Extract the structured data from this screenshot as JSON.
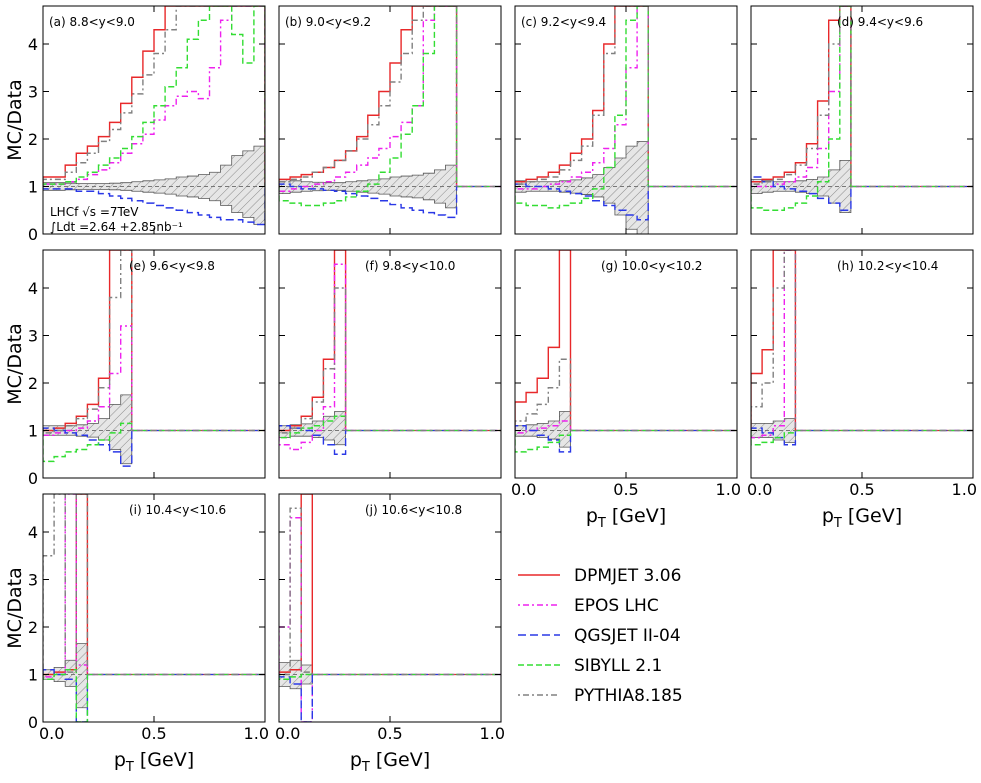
{
  "chart_data": {
    "type": "line",
    "ylabel": "MC/Data",
    "xlabel_main": "p",
    "xlabel_sub": "T",
    "xlabel_unit": " [GeV]",
    "xlim": [
      0.0,
      1.0
    ],
    "ylim": [
      0,
      4.8
    ],
    "xticks": [
      "0.0",
      "0.5",
      "1.0"
    ],
    "yticks": [
      "0",
      "1",
      "2",
      "3",
      "4"
    ],
    "annotation": {
      "line1": "LHCf √s =7TeV",
      "line2": "∫Ldt =2.64 +2.85nb⁻¹"
    },
    "legend": [
      {
        "name": "DPMJET 3.06",
        "color": "#e8282a",
        "dash": ""
      },
      {
        "name": "EPOS LHC",
        "color": "#ee22ee",
        "dash": "2,3,6,3"
      },
      {
        "name": "QGSJET II-04",
        "color": "#2a38e6",
        "dash": "8,4"
      },
      {
        "name": "SIBYLL 2.1",
        "color": "#33dd33",
        "dash": "6,3"
      },
      {
        "name": "PYTHIA8.185",
        "color": "#808080",
        "dash": "2,3,6,3"
      }
    ],
    "panels": [
      {
        "label": "(a) 8.8<y<9.0",
        "edges": [
          0.0,
          0.1,
          0.15,
          0.2,
          0.25,
          0.3,
          0.35,
          0.4,
          0.45,
          0.5,
          0.55,
          0.6,
          0.65,
          0.7,
          0.75,
          0.8,
          0.85,
          0.9,
          0.95,
          1.0
        ],
        "series": {
          "DPMJET 3.06": [
            1.2,
            1.45,
            1.7,
            1.85,
            2.05,
            2.35,
            2.75,
            3.3,
            3.85,
            4.3,
            4.8,
            5.2,
            6,
            6,
            6,
            6,
            6,
            6,
            6
          ],
          "EPOS LHC": [
            1.05,
            1.1,
            1.15,
            1.25,
            1.35,
            1.5,
            1.7,
            1.9,
            2.1,
            2.4,
            2.7,
            2.9,
            3.0,
            2.85,
            3.5,
            4.5,
            5,
            5,
            5
          ],
          "QGSJET II-04": [
            0.95,
            0.95,
            0.9,
            0.9,
            0.85,
            0.8,
            0.75,
            0.7,
            0.65,
            0.6,
            0.55,
            0.5,
            0.45,
            0.4,
            0.35,
            0.3,
            0.3,
            0.25,
            0.2
          ],
          "SIBYLL 2.1": [
            1.05,
            1.1,
            1.2,
            1.3,
            1.45,
            1.6,
            1.8,
            2.05,
            2.35,
            2.7,
            3.1,
            3.5,
            4.1,
            4.5,
            4.9,
            5.3,
            4.2,
            3.6,
            6
          ],
          "PYTHIA8.185": [
            1.15,
            1.3,
            1.5,
            1.7,
            1.95,
            2.2,
            2.55,
            2.95,
            3.35,
            3.8,
            4.3,
            4.8,
            6,
            6,
            6,
            6,
            6,
            6,
            6
          ]
        },
        "band_lo": [
          0.92,
          0.93,
          0.94,
          0.94,
          0.94,
          0.93,
          0.92,
          0.9,
          0.88,
          0.86,
          0.84,
          0.8,
          0.78,
          0.75,
          0.7,
          0.6,
          0.45,
          0.35,
          0.2
        ],
        "band_hi": [
          1.08,
          1.07,
          1.06,
          1.06,
          1.06,
          1.07,
          1.08,
          1.1,
          1.12,
          1.14,
          1.16,
          1.2,
          1.22,
          1.25,
          1.3,
          1.45,
          1.65,
          1.75,
          1.85
        ]
      },
      {
        "label": "(b) 9.0<y<9.2",
        "edges": [
          0.0,
          0.05,
          0.1,
          0.15,
          0.2,
          0.25,
          0.3,
          0.35,
          0.4,
          0.45,
          0.5,
          0.55,
          0.6,
          0.65,
          0.7,
          0.75,
          0.8
        ],
        "series": {
          "DPMJET 3.06": [
            1.15,
            1.2,
            1.25,
            1.3,
            1.4,
            1.55,
            1.75,
            2.05,
            2.5,
            3.0,
            3.6,
            4.3,
            5,
            6,
            6,
            6
          ],
          "EPOS LHC": [
            0.9,
            0.95,
            1.0,
            1.05,
            1.1,
            1.2,
            1.3,
            1.45,
            1.6,
            1.8,
            2.05,
            2.35,
            2.7,
            4.5,
            6,
            6
          ],
          "QGSJET II-04": [
            1.05,
            1.0,
            0.95,
            0.95,
            0.92,
            0.9,
            0.85,
            0.8,
            0.75,
            0.7,
            0.62,
            0.55,
            0.5,
            0.45,
            0.4,
            0.35
          ],
          "SIBYLL 2.1": [
            0.7,
            0.65,
            0.6,
            0.6,
            0.65,
            0.7,
            0.78,
            0.9,
            1.05,
            1.3,
            1.6,
            2.1,
            2.7,
            3.8,
            5,
            6
          ],
          "PYTHIA8.185": [
            1.1,
            1.15,
            1.2,
            1.3,
            1.4,
            1.55,
            1.75,
            2.0,
            2.3,
            2.7,
            3.2,
            3.8,
            4.5,
            6,
            6,
            6
          ]
        },
        "band_lo": [
          0.85,
          0.88,
          0.9,
          0.91,
          0.92,
          0.92,
          0.9,
          0.88,
          0.86,
          0.84,
          0.8,
          0.78,
          0.76,
          0.72,
          0.65,
          0.55
        ],
        "band_hi": [
          1.15,
          1.12,
          1.1,
          1.09,
          1.08,
          1.08,
          1.1,
          1.12,
          1.14,
          1.16,
          1.2,
          1.22,
          1.24,
          1.28,
          1.35,
          1.45
        ]
      },
      {
        "label": "(c) 9.2<y<9.4",
        "edges": [
          0.0,
          0.05,
          0.1,
          0.15,
          0.2,
          0.25,
          0.3,
          0.35,
          0.4,
          0.45,
          0.5,
          0.55,
          0.6
        ],
        "series": {
          "DPMJET 3.06": [
            1.1,
            1.15,
            1.2,
            1.3,
            1.45,
            1.7,
            2.0,
            2.6,
            4.0,
            6,
            6,
            6
          ],
          "EPOS LHC": [
            0.95,
            0.95,
            1.0,
            1.05,
            1.1,
            1.2,
            1.3,
            1.5,
            1.8,
            2.3,
            3.5,
            6
          ],
          "QGSJET II-04": [
            1.05,
            1.0,
            1.0,
            0.95,
            0.9,
            0.85,
            0.8,
            0.7,
            0.6,
            0.5,
            0.4,
            0.3
          ],
          "SIBYLL 2.1": [
            0.65,
            0.6,
            0.6,
            0.55,
            0.6,
            0.65,
            0.75,
            0.95,
            1.4,
            2.5,
            4.5,
            6
          ],
          "PYTHIA8.185": [
            1.05,
            1.1,
            1.15,
            1.2,
            1.35,
            1.55,
            1.85,
            2.5,
            3.8,
            5.5,
            6,
            6
          ]
        },
        "band_lo": [
          0.88,
          0.9,
          0.9,
          0.9,
          0.88,
          0.86,
          0.83,
          0.78,
          0.65,
          0.4,
          0.1,
          0.0
        ],
        "band_hi": [
          1.12,
          1.1,
          1.1,
          1.1,
          1.12,
          1.14,
          1.18,
          1.25,
          1.4,
          1.6,
          1.85,
          1.95
        ]
      },
      {
        "label": "(d) 9.4<y<9.6",
        "edges": [
          0.0,
          0.05,
          0.1,
          0.15,
          0.2,
          0.25,
          0.3,
          0.35,
          0.4,
          0.45
        ],
        "series": {
          "DPMJET 3.06": [
            1.1,
            1.15,
            1.2,
            1.3,
            1.5,
            1.9,
            2.8,
            4.5,
            6
          ],
          "EPOS LHC": [
            1.0,
            1.0,
            1.05,
            1.1,
            1.2,
            1.4,
            1.8,
            3.0,
            6
          ],
          "QGSJET II-04": [
            1.2,
            1.1,
            1.0,
            0.95,
            0.9,
            0.85,
            0.75,
            0.65,
            0.5
          ],
          "SIBYLL 2.1": [
            0.55,
            0.5,
            0.5,
            0.55,
            0.65,
            0.8,
            1.1,
            2.0,
            6
          ],
          "PYTHIA8.185": [
            1.05,
            1.1,
            1.15,
            1.25,
            1.45,
            1.8,
            2.5,
            4.0,
            6
          ]
        },
        "band_lo": [
          0.85,
          0.88,
          0.9,
          0.9,
          0.88,
          0.85,
          0.8,
          0.65,
          0.45
        ],
        "band_hi": [
          1.15,
          1.12,
          1.1,
          1.1,
          1.12,
          1.15,
          1.2,
          1.35,
          1.55
        ]
      },
      {
        "label": "(e) 9.6<y<9.8",
        "edges": [
          0.0,
          0.05,
          0.1,
          0.15,
          0.2,
          0.25,
          0.3,
          0.35,
          0.4
        ],
        "series": {
          "DPMJET 3.06": [
            1.0,
            1.05,
            1.15,
            1.3,
            1.55,
            2.1,
            6,
            6
          ],
          "EPOS LHC": [
            0.9,
            0.95,
            1.0,
            1.05,
            1.2,
            1.5,
            2.2,
            3.2
          ],
          "QGSJET II-04": [
            1.05,
            1.0,
            0.95,
            0.9,
            0.8,
            0.7,
            0.55,
            0.25
          ],
          "SIBYLL 2.1": [
            0.35,
            0.45,
            0.55,
            0.6,
            0.7,
            0.8,
            0.95,
            1.15
          ],
          "PYTHIA8.185": [
            0.95,
            1.0,
            1.1,
            1.25,
            1.45,
            1.9,
            3.8,
            6
          ]
        },
        "band_lo": [
          0.9,
          0.9,
          0.9,
          0.88,
          0.86,
          0.8,
          0.6,
          0.3
        ],
        "band_hi": [
          1.1,
          1.1,
          1.1,
          1.12,
          1.15,
          1.25,
          1.55,
          1.75
        ]
      },
      {
        "label": "(f) 9.8<y<10.0",
        "edges": [
          0.0,
          0.05,
          0.1,
          0.15,
          0.2,
          0.25,
          0.3
        ],
        "series": {
          "DPMJET 3.06": [
            1.0,
            1.1,
            1.3,
            1.7,
            2.5,
            6
          ],
          "EPOS LHC": [
            0.7,
            0.6,
            0.75,
            1.0,
            1.5,
            4.5
          ],
          "QGSJET II-04": [
            1.1,
            1.05,
            1.0,
            0.9,
            0.7,
            0.5
          ],
          "SIBYLL 2.1": [
            0.85,
            0.95,
            1.05,
            1.1,
            1.2,
            1.3
          ],
          "PYTHIA8.185": [
            0.95,
            1.05,
            1.25,
            1.6,
            2.3,
            4.0
          ]
        },
        "band_lo": [
          0.85,
          0.88,
          0.88,
          0.85,
          0.8,
          0.7
        ],
        "band_hi": [
          1.1,
          1.12,
          1.14,
          1.2,
          1.3,
          1.4
        ]
      },
      {
        "label": "(g) 10.0<y<10.2",
        "edges": [
          0.0,
          0.05,
          0.1,
          0.15,
          0.2,
          0.25
        ],
        "series": {
          "DPMJET 3.06": [
            1.6,
            1.8,
            2.1,
            2.75,
            6
          ],
          "EPOS LHC": [
            0.95,
            1.0,
            1.05,
            1.1,
            1.2
          ],
          "QGSJET II-04": [
            1.1,
            1.0,
            0.9,
            0.8,
            0.55
          ],
          "SIBYLL 2.1": [
            0.55,
            0.6,
            0.65,
            0.75,
            0.9
          ],
          "PYTHIA8.185": [
            1.2,
            1.35,
            1.55,
            1.9,
            2.5
          ]
        },
        "band_lo": [
          0.88,
          0.88,
          0.85,
          0.82,
          0.65
        ],
        "band_hi": [
          1.1,
          1.12,
          1.15,
          1.2,
          1.4
        ]
      },
      {
        "label": "(h) 10.2<y<10.4",
        "edges": [
          0.0,
          0.05,
          0.1,
          0.15,
          0.2
        ],
        "series": {
          "DPMJET 3.06": [
            2.2,
            2.7,
            6,
            6
          ],
          "EPOS LHC": [
            0.85,
            0.9,
            1.1,
            6
          ],
          "QGSJET II-04": [
            1.05,
            0.95,
            0.85,
            0.7
          ],
          "SIBYLL 2.1": [
            0.7,
            0.75,
            0.85,
            0.95
          ],
          "PYTHIA8.185": [
            1.5,
            2.0,
            4.0,
            6
          ]
        },
        "band_lo": [
          0.85,
          0.85,
          0.8,
          0.75
        ],
        "band_hi": [
          1.15,
          1.15,
          1.2,
          1.25
        ]
      },
      {
        "label": "(i) 10.4<y<10.6",
        "edges": [
          0.0,
          0.05,
          0.1,
          0.15,
          0.2
        ],
        "series": {
          "DPMJET 3.06": [
            1.0,
            1.05,
            1.1,
            6
          ],
          "EPOS LHC": [
            0.95,
            1.0,
            6,
            1.2
          ],
          "QGSJET II-04": [
            1.1,
            1.0,
            0.9,
            0.0
          ],
          "SIBYLL 2.1": [
            0.9,
            1.0,
            1.1,
            0.0
          ],
          "PYTHIA8.185": [
            3.5,
            6,
            1.05,
            6
          ]
        },
        "band_lo": [
          0.9,
          0.85,
          0.75,
          0.3
        ],
        "band_hi": [
          1.1,
          1.15,
          1.3,
          1.65
        ]
      },
      {
        "label": "(j) 10.6<y<10.8",
        "edges": [
          0.0,
          0.05,
          0.1,
          0.15
        ],
        "series": {
          "DPMJET 3.06": [
            1.05,
            1.1,
            6
          ],
          "EPOS LHC": [
            2.0,
            4.3,
            0.0
          ],
          "QGSJET II-04": [
            0.95,
            0.8,
            0.0
          ],
          "SIBYLL 2.1": [
            0.9,
            0.95,
            1.0
          ],
          "PYTHIA8.185": [
            1.0,
            4.5,
            1.05
          ]
        },
        "band_lo": [
          0.75,
          0.7,
          0.8
        ],
        "band_hi": [
          1.25,
          1.3,
          1.2
        ]
      }
    ]
  }
}
